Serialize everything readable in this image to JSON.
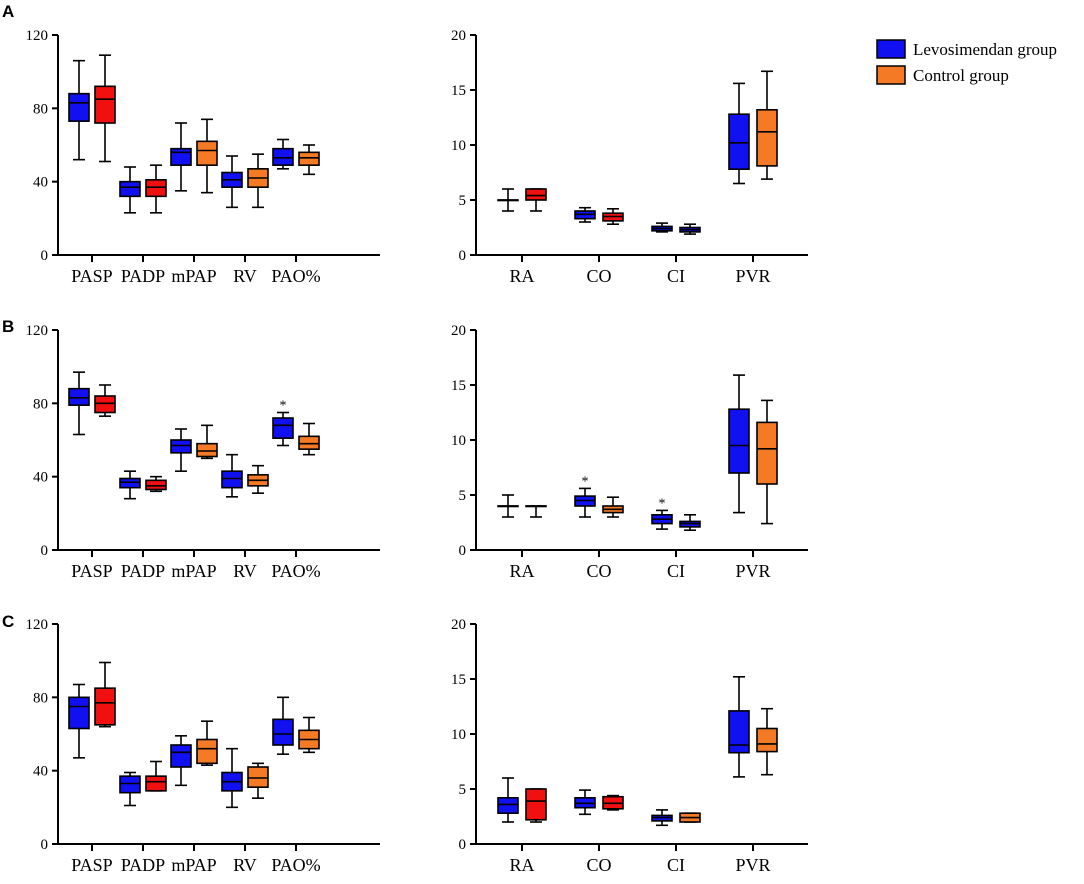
{
  "colors": {
    "levosimendan": "#1010F0",
    "control_orange": "#F47A26",
    "control_red": "#F01010"
  },
  "legend": [
    {
      "label": "Levosimendan group",
      "color": "#1010F0"
    },
    {
      "label": "Control group",
      "color": "#F47A26"
    }
  ],
  "chart_data": [
    {
      "panel": "A",
      "type": "box",
      "ylim": [
        0,
        120
      ],
      "yticks": [
        0,
        40,
        80,
        120
      ],
      "categories": [
        "PASP",
        "PADP",
        "mPAP",
        "RV",
        "PAO%"
      ],
      "groups": [
        {
          "category": "PASP",
          "series": "Levosimendan group",
          "color": "#1010F0",
          "min": 52,
          "q1": 73,
          "median": 83,
          "q3": 88,
          "max": 106,
          "sig": ""
        },
        {
          "category": "PASP",
          "series": "Control group",
          "color": "#F01010",
          "min": 51,
          "q1": 72,
          "median": 85,
          "q3": 92,
          "max": 109,
          "sig": ""
        },
        {
          "category": "PADP",
          "series": "Levosimendan group",
          "color": "#1010F0",
          "min": 23,
          "q1": 32,
          "median": 37,
          "q3": 40,
          "max": 48,
          "sig": ""
        },
        {
          "category": "PADP",
          "series": "Control group",
          "color": "#F01010",
          "min": 23,
          "q1": 32,
          "median": 37,
          "q3": 41,
          "max": 49,
          "sig": ""
        },
        {
          "category": "mPAP",
          "series": "Levosimendan group",
          "color": "#1010F0",
          "min": 35,
          "q1": 49,
          "median": 56,
          "q3": 58,
          "max": 72,
          "sig": ""
        },
        {
          "category": "mPAP",
          "series": "Control group",
          "color": "#F47A26",
          "min": 34,
          "q1": 49,
          "median": 57,
          "q3": 62,
          "max": 74,
          "sig": ""
        },
        {
          "category": "RV",
          "series": "Levosimendan group",
          "color": "#1010F0",
          "min": 26,
          "q1": 37,
          "median": 41,
          "q3": 45,
          "max": 54,
          "sig": ""
        },
        {
          "category": "RV",
          "series": "Control group",
          "color": "#F47A26",
          "min": 26,
          "q1": 37,
          "median": 42,
          "q3": 47,
          "max": 55,
          "sig": ""
        },
        {
          "category": "PAO%",
          "series": "Levosimendan group",
          "color": "#1010F0",
          "min": 47,
          "q1": 49,
          "median": 53,
          "q3": 58,
          "max": 63,
          "sig": ""
        },
        {
          "category": "PAO%",
          "series": "Control group",
          "color": "#F47A26",
          "min": 44,
          "q1": 49,
          "median": 53,
          "q3": 56,
          "max": 60,
          "sig": ""
        }
      ]
    },
    {
      "panel": "A-right",
      "type": "box",
      "ylim": [
        0,
        20
      ],
      "yticks": [
        0,
        5,
        10,
        15,
        20
      ],
      "categories": [
        "RA",
        "CO",
        "CI",
        "PVR"
      ],
      "groups": [
        {
          "category": "RA",
          "series": "Levosimendan group",
          "color": "#1010F0",
          "min": 4,
          "q1": 5,
          "median": 5,
          "q3": 5,
          "max": 6,
          "sig": ""
        },
        {
          "category": "RA",
          "series": "Control group",
          "color": "#F01010",
          "min": 4,
          "q1": 5,
          "median": 5.4,
          "q3": 6,
          "max": 6,
          "sig": ""
        },
        {
          "category": "CO",
          "series": "Levosimendan group",
          "color": "#1010F0",
          "min": 3,
          "q1": 3.3,
          "median": 3.7,
          "q3": 4,
          "max": 4.3,
          "sig": ""
        },
        {
          "category": "CO",
          "series": "Control group",
          "color": "#F01010",
          "min": 2.8,
          "q1": 3.1,
          "median": 3.5,
          "q3": 3.8,
          "max": 4.2,
          "sig": ""
        },
        {
          "category": "CI",
          "series": "Levosimendan group",
          "color": "#1010F0",
          "min": 2.1,
          "q1": 2.2,
          "median": 2.4,
          "q3": 2.6,
          "max": 2.9,
          "sig": ""
        },
        {
          "category": "CI",
          "series": "Control group",
          "color": "#1010F0",
          "min": 1.9,
          "q1": 2.1,
          "median": 2.3,
          "q3": 2.5,
          "max": 2.8,
          "sig": ""
        },
        {
          "category": "PVR",
          "series": "Levosimendan group",
          "color": "#1010F0",
          "min": 6.5,
          "q1": 7.8,
          "median": 10.2,
          "q3": 12.8,
          "max": 15.6,
          "sig": ""
        },
        {
          "category": "PVR",
          "series": "Control group",
          "color": "#F47A26",
          "min": 6.9,
          "q1": 8.1,
          "median": 11.2,
          "q3": 13.2,
          "max": 16.7,
          "sig": ""
        }
      ]
    },
    {
      "panel": "B",
      "type": "box",
      "ylim": [
        0,
        120
      ],
      "yticks": [
        0,
        40,
        80,
        120
      ],
      "categories": [
        "PASP",
        "PADP",
        "mPAP",
        "RV",
        "PAO%"
      ],
      "groups": [
        {
          "category": "PASP",
          "series": "Levosimendan group",
          "color": "#1010F0",
          "min": 63,
          "q1": 79,
          "median": 83,
          "q3": 88,
          "max": 97,
          "sig": ""
        },
        {
          "category": "PASP",
          "series": "Control group",
          "color": "#F01010",
          "min": 73,
          "q1": 75,
          "median": 80,
          "q3": 84,
          "max": 90,
          "sig": ""
        },
        {
          "category": "PADP",
          "series": "Levosimendan group",
          "color": "#1010F0",
          "min": 28,
          "q1": 34,
          "median": 37,
          "q3": 39,
          "max": 43,
          "sig": ""
        },
        {
          "category": "PADP",
          "series": "Control group",
          "color": "#F01010",
          "min": 32,
          "q1": 33,
          "median": 35,
          "q3": 38,
          "max": 40,
          "sig": ""
        },
        {
          "category": "mPAP",
          "series": "Levosimendan group",
          "color": "#1010F0",
          "min": 43,
          "q1": 53,
          "median": 57,
          "q3": 60,
          "max": 66,
          "sig": ""
        },
        {
          "category": "mPAP",
          "series": "Control group",
          "color": "#F47A26",
          "min": 50,
          "q1": 51,
          "median": 54,
          "q3": 58,
          "max": 68,
          "sig": ""
        },
        {
          "category": "RV",
          "series": "Levosimendan group",
          "color": "#1010F0",
          "min": 29,
          "q1": 34,
          "median": 39,
          "q3": 43,
          "max": 52,
          "sig": ""
        },
        {
          "category": "RV",
          "series": "Control group",
          "color": "#F47A26",
          "min": 31,
          "q1": 35,
          "median": 38,
          "q3": 41,
          "max": 46,
          "sig": ""
        },
        {
          "category": "PAO%",
          "series": "Levosimendan group",
          "color": "#1010F0",
          "min": 57,
          "q1": 61,
          "median": 68,
          "q3": 72,
          "max": 75,
          "sig": "*"
        },
        {
          "category": "PAO%",
          "series": "Control group",
          "color": "#F47A26",
          "min": 52,
          "q1": 55,
          "median": 58,
          "q3": 62,
          "max": 69,
          "sig": ""
        }
      ]
    },
    {
      "panel": "B-right",
      "type": "box",
      "ylim": [
        0,
        20
      ],
      "yticks": [
        0,
        5,
        10,
        15,
        20
      ],
      "categories": [
        "RA",
        "CO",
        "CI",
        "PVR"
      ],
      "groups": [
        {
          "category": "RA",
          "series": "Levosimendan group",
          "color": "#1010F0",
          "min": 3,
          "q1": 4,
          "median": 4,
          "q3": 4,
          "max": 5,
          "sig": ""
        },
        {
          "category": "RA",
          "series": "Control group",
          "color": "#F01010",
          "min": 3,
          "q1": 4,
          "median": 4,
          "q3": 4,
          "max": 4,
          "sig": ""
        },
        {
          "category": "CO",
          "series": "Levosimendan group",
          "color": "#1010F0",
          "min": 3,
          "q1": 4,
          "median": 4.5,
          "q3": 4.9,
          "max": 5.6,
          "sig": "*"
        },
        {
          "category": "CO",
          "series": "Control group",
          "color": "#F47A26",
          "min": 3,
          "q1": 3.4,
          "median": 3.7,
          "q3": 4,
          "max": 4.8,
          "sig": ""
        },
        {
          "category": "CI",
          "series": "Levosimendan group",
          "color": "#1010F0",
          "min": 1.9,
          "q1": 2.4,
          "median": 2.8,
          "q3": 3.2,
          "max": 3.6,
          "sig": "*"
        },
        {
          "category": "CI",
          "series": "Control group",
          "color": "#1010F0",
          "min": 1.8,
          "q1": 2.1,
          "median": 2.4,
          "q3": 2.6,
          "max": 3.2,
          "sig": ""
        },
        {
          "category": "PVR",
          "series": "Levosimendan group",
          "color": "#1010F0",
          "min": 3.4,
          "q1": 7,
          "median": 9.5,
          "q3": 12.8,
          "max": 15.9,
          "sig": ""
        },
        {
          "category": "PVR",
          "series": "Control group",
          "color": "#F47A26",
          "min": 2.4,
          "q1": 6,
          "median": 9.2,
          "q3": 11.6,
          "max": 13.6,
          "sig": ""
        }
      ]
    },
    {
      "panel": "C",
      "type": "box",
      "ylim": [
        0,
        120
      ],
      "yticks": [
        0,
        40,
        80,
        120
      ],
      "categories": [
        "PASP",
        "PADP",
        "mPAP",
        "RV",
        "PAO%"
      ],
      "groups": [
        {
          "category": "PASP",
          "series": "Levosimendan group",
          "color": "#1010F0",
          "min": 47,
          "q1": 63,
          "median": 75,
          "q3": 80,
          "max": 87,
          "sig": ""
        },
        {
          "category": "PASP",
          "series": "Control group",
          "color": "#F01010",
          "min": 64,
          "q1": 65,
          "median": 77,
          "q3": 85,
          "max": 99,
          "sig": ""
        },
        {
          "category": "PADP",
          "series": "Levosimendan group",
          "color": "#1010F0",
          "min": 21,
          "q1": 28,
          "median": 33,
          "q3": 37,
          "max": 39,
          "sig": ""
        },
        {
          "category": "PADP",
          "series": "Control group",
          "color": "#F01010",
          "min": 29,
          "q1": 29,
          "median": 34,
          "q3": 37,
          "max": 45,
          "sig": ""
        },
        {
          "category": "mPAP",
          "series": "Levosimendan group",
          "color": "#1010F0",
          "min": 32,
          "q1": 42,
          "median": 50,
          "q3": 54,
          "max": 59,
          "sig": ""
        },
        {
          "category": "mPAP",
          "series": "Control group",
          "color": "#F47A26",
          "min": 43,
          "q1": 44,
          "median": 52,
          "q3": 57,
          "max": 67,
          "sig": ""
        },
        {
          "category": "RV",
          "series": "Levosimendan group",
          "color": "#1010F0",
          "min": 20,
          "q1": 29,
          "median": 34,
          "q3": 39,
          "max": 52,
          "sig": ""
        },
        {
          "category": "RV",
          "series": "Control group",
          "color": "#F47A26",
          "min": 25,
          "q1": 31,
          "median": 36,
          "q3": 42,
          "max": 44,
          "sig": ""
        },
        {
          "category": "PAO%",
          "series": "Levosimendan group",
          "color": "#1010F0",
          "min": 49,
          "q1": 54,
          "median": 60,
          "q3": 68,
          "max": 80,
          "sig": ""
        },
        {
          "category": "PAO%",
          "series": "Control group",
          "color": "#F47A26",
          "min": 50,
          "q1": 52,
          "median": 57,
          "q3": 62,
          "max": 69,
          "sig": ""
        }
      ]
    },
    {
      "panel": "C-right",
      "type": "box",
      "ylim": [
        0,
        20
      ],
      "yticks": [
        0,
        5,
        10,
        15,
        20
      ],
      "categories": [
        "RA",
        "CO",
        "CI",
        "PVR"
      ],
      "groups": [
        {
          "category": "RA",
          "series": "Levosimendan group",
          "color": "#1010F0",
          "min": 2,
          "q1": 2.8,
          "median": 3.6,
          "q3": 4.2,
          "max": 6,
          "sig": ""
        },
        {
          "category": "RA",
          "series": "Control group",
          "color": "#F01010",
          "min": 2,
          "q1": 2.2,
          "median": 3.9,
          "q3": 5,
          "max": 5,
          "sig": ""
        },
        {
          "category": "CO",
          "series": "Levosimendan group",
          "color": "#1010F0",
          "min": 2.7,
          "q1": 3.3,
          "median": 3.7,
          "q3": 4.2,
          "max": 4.9,
          "sig": ""
        },
        {
          "category": "CO",
          "series": "Control group",
          "color": "#F01010",
          "min": 3.1,
          "q1": 3.2,
          "median": 3.7,
          "q3": 4.3,
          "max": 4.4,
          "sig": ""
        },
        {
          "category": "CI",
          "series": "Levosimendan group",
          "color": "#1010F0",
          "min": 1.7,
          "q1": 2.1,
          "median": 2.4,
          "q3": 2.6,
          "max": 3.1,
          "sig": ""
        },
        {
          "category": "CI",
          "series": "Control group",
          "color": "#F47A26",
          "min": 2,
          "q1": 2,
          "median": 2.4,
          "q3": 2.8,
          "max": 2.8,
          "sig": ""
        },
        {
          "category": "PVR",
          "series": "Levosimendan group",
          "color": "#1010F0",
          "min": 6.1,
          "q1": 8.3,
          "median": 9,
          "q3": 12.1,
          "max": 15.2,
          "sig": ""
        },
        {
          "category": "PVR",
          "series": "Control group",
          "color": "#F47A26",
          "min": 6.3,
          "q1": 8.4,
          "median": 9.1,
          "q3": 10.5,
          "max": 12.3,
          "sig": ""
        }
      ]
    }
  ]
}
